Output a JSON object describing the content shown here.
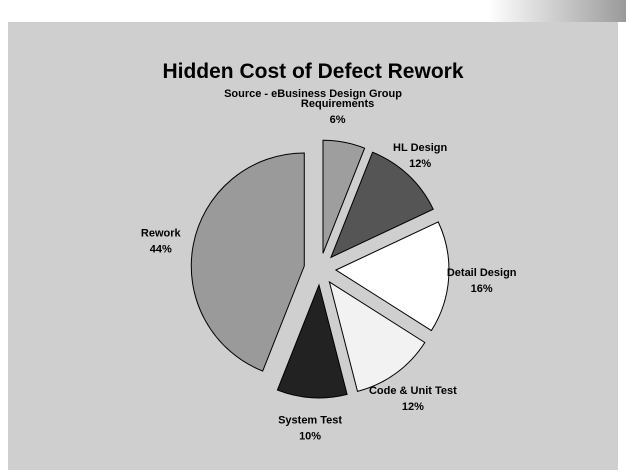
{
  "chart_data": {
    "type": "pie",
    "title": "Hidden Cost of Defect Rework",
    "subtitle": "Source  -  eBusiness Design Group",
    "slices": [
      {
        "label": "Requirements",
        "value": 6,
        "value_label": "6%",
        "color": "#9e9e9e"
      },
      {
        "label": "HL Design",
        "value": 12,
        "value_label": "12%",
        "color": "#555555"
      },
      {
        "label": "Detail Design",
        "value": 16,
        "value_label": "16%",
        "color": "#ffffff"
      },
      {
        "label": "Code & Unit Test",
        "value": 12,
        "value_label": "12%",
        "color": "#f2f2f2"
      },
      {
        "label": "System Test",
        "value": 10,
        "value_label": "10%",
        "color": "#222222"
      },
      {
        "label": "Rework",
        "value": 44,
        "value_label": "44%",
        "color": "#9a9a9a"
      }
    ],
    "exploded": true,
    "legend": "none",
    "grid": false
  }
}
